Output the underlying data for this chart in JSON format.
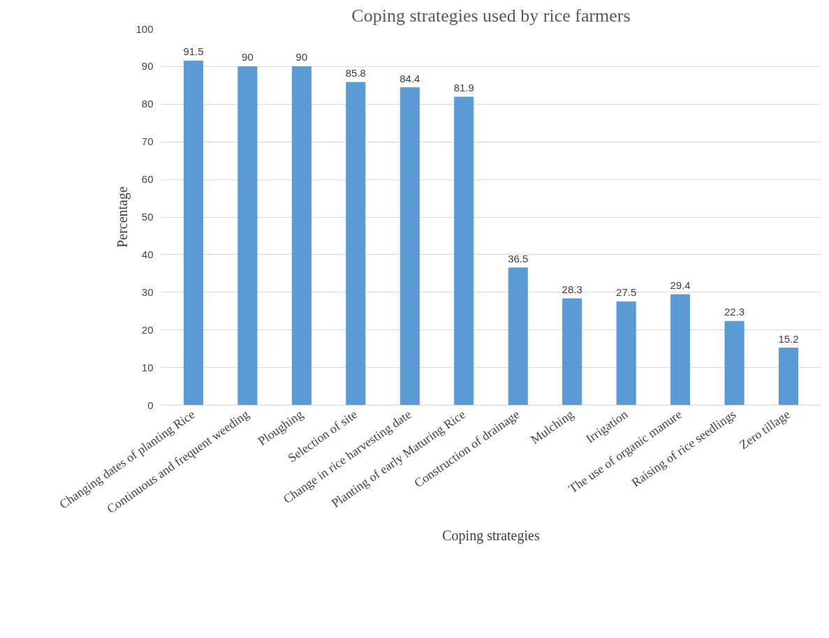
{
  "chart_data": {
    "type": "bar",
    "title": "Coping strategies used by rice farmers",
    "xlabel": "Coping strategies",
    "ylabel": "Percentage",
    "categories": [
      "Changing dates of planting Rice",
      "Continuous and frequent weeding",
      "Ploughing",
      "Selection of site",
      "Change in rice harvesting date",
      "Planting of early Maturing Rice",
      "Construction of drainage",
      "Mulching",
      "Irrigation",
      "The use of organic manure",
      "Raising of rice seedlings",
      "Zero tillage"
    ],
    "values": [
      91.5,
      90,
      90,
      85.8,
      84.4,
      81.9,
      36.5,
      28.3,
      27.5,
      29.4,
      22.3,
      15.2
    ],
    "color": "#5b9bd5",
    "ylim": [
      0,
      100
    ],
    "yticks": [
      0,
      10,
      20,
      30,
      40,
      50,
      60,
      70,
      80,
      90,
      100
    ],
    "grid": "y",
    "data_labels": true
  }
}
